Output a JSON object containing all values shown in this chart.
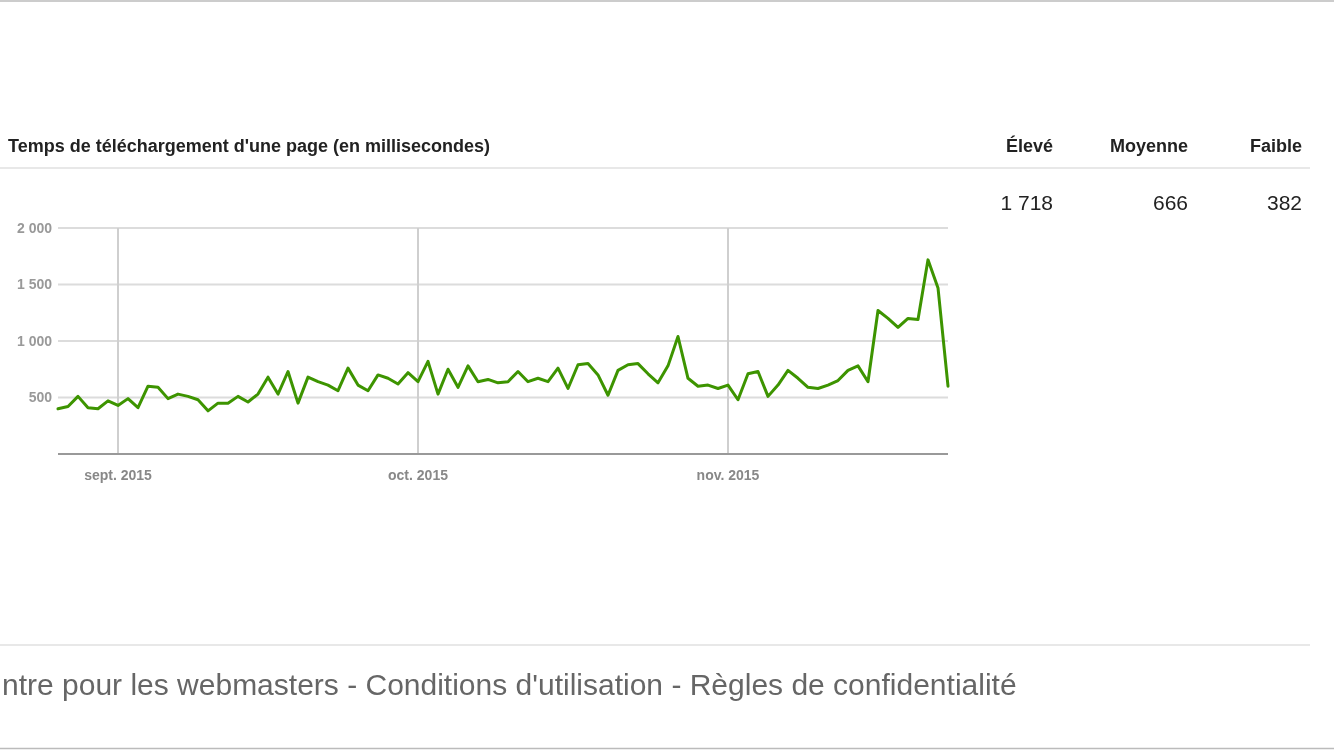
{
  "chart_data": {
    "type": "line",
    "title": "Temps de téléchargement d'une page (en millisecondes)",
    "x": [
      "2015-08-26",
      "2015-08-27",
      "2015-08-28",
      "2015-08-29",
      "2015-08-30",
      "2015-08-31",
      "2015-09-01",
      "2015-09-02",
      "2015-09-03",
      "2015-09-04",
      "2015-09-05",
      "2015-09-06",
      "2015-09-07",
      "2015-09-08",
      "2015-09-09",
      "2015-09-10",
      "2015-09-11",
      "2015-09-12",
      "2015-09-13",
      "2015-09-14",
      "2015-09-15",
      "2015-09-16",
      "2015-09-17",
      "2015-09-18",
      "2015-09-19",
      "2015-09-20",
      "2015-09-21",
      "2015-09-22",
      "2015-09-23",
      "2015-09-24",
      "2015-09-25",
      "2015-09-26",
      "2015-09-27",
      "2015-09-28",
      "2015-09-29",
      "2015-09-30",
      "2015-10-01",
      "2015-10-02",
      "2015-10-03",
      "2015-10-04",
      "2015-10-05",
      "2015-10-06",
      "2015-10-07",
      "2015-10-08",
      "2015-10-09",
      "2015-10-10",
      "2015-10-11",
      "2015-10-12",
      "2015-10-13",
      "2015-10-14",
      "2015-10-15",
      "2015-10-16",
      "2015-10-17",
      "2015-10-18",
      "2015-10-19",
      "2015-10-20",
      "2015-10-21",
      "2015-10-22",
      "2015-10-23",
      "2015-10-24",
      "2015-10-25",
      "2015-10-26",
      "2015-10-27",
      "2015-10-28",
      "2015-10-29",
      "2015-10-30",
      "2015-10-31",
      "2015-11-01",
      "2015-11-02",
      "2015-11-03",
      "2015-11-04",
      "2015-11-05",
      "2015-11-06",
      "2015-11-07",
      "2015-11-08",
      "2015-11-09",
      "2015-11-10",
      "2015-11-11",
      "2015-11-12",
      "2015-11-13",
      "2015-11-14",
      "2015-11-15",
      "2015-11-16",
      "2015-11-17",
      "2015-11-18",
      "2015-11-19",
      "2015-11-20",
      "2015-11-21",
      "2015-11-22",
      "2015-11-23"
    ],
    "series": [
      {
        "color": "#3d9400",
        "values": [
          400,
          420,
          510,
          410,
          400,
          470,
          430,
          490,
          410,
          600,
          590,
          490,
          530,
          510,
          480,
          382,
          450,
          450,
          510,
          460,
          530,
          680,
          530,
          730,
          450,
          680,
          640,
          610,
          560,
          760,
          610,
          560,
          700,
          670,
          620,
          720,
          640,
          820,
          530,
          750,
          590,
          780,
          640,
          660,
          630,
          640,
          730,
          640,
          670,
          640,
          760,
          580,
          790,
          800,
          700,
          520,
          740,
          790,
          800,
          710,
          630,
          780,
          1040,
          670,
          600,
          610,
          580,
          610,
          480,
          710,
          730,
          510,
          610,
          740,
          670,
          590,
          580,
          610,
          650,
          740,
          780,
          640,
          1270,
          1200,
          1120,
          1200,
          1190,
          1718,
          1470,
          600
        ]
      }
    ],
    "xlim": [
      "2015-08-26",
      "2015-11-23"
    ],
    "xticks": [
      {
        "value": "2015-09-01",
        "label": "sept. 2015"
      },
      {
        "value": "2015-10-01",
        "label": "oct. 2015"
      },
      {
        "value": "2015-11-01",
        "label": "nov. 2015"
      }
    ],
    "ylim": [
      0,
      2000
    ],
    "yticks": [
      500,
      {
        "value": 1000,
        "label": "1 000"
      },
      {
        "value": 1500,
        "label": "1 500"
      },
      {
        "value": 2000,
        "label": "2 000"
      }
    ],
    "grid": true,
    "annotations": [
      "Élevé",
      "Moyenne",
      "Faible",
      "1 718",
      "666",
      "382",
      "ntre pour les webmasters - Conditions d'utilisation - Règles de confidentialité"
    ]
  }
}
